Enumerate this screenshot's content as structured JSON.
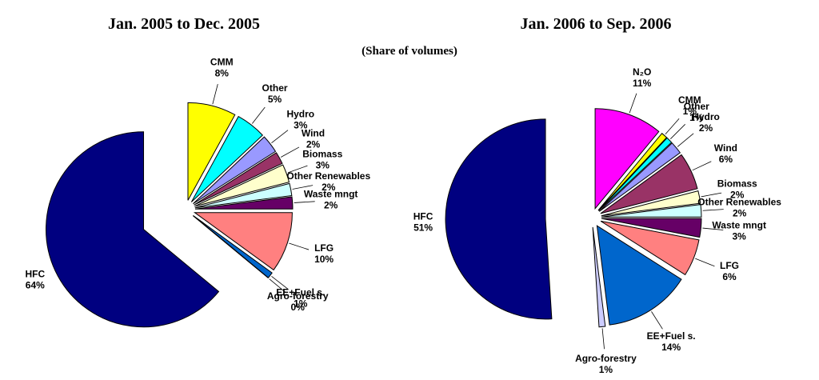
{
  "subtitle": "(Share of volumes)",
  "chart_data": [
    {
      "type": "pie",
      "title": "Jan. 2005 to Dec. 2005",
      "categories": [
        "CMM",
        "Other",
        "Hydro",
        "Wind",
        "Biomass",
        "Other Renewables",
        "Waste mngt",
        "LFG",
        "EE+Fuel s.",
        "Agro-forestry",
        "HFC"
      ],
      "values": [
        8,
        5,
        3,
        2,
        3,
        2,
        2,
        10,
        1,
        0,
        64
      ],
      "value_labels": [
        "8%",
        "5%",
        "3%",
        "2%",
        "3%",
        "2%",
        "2%",
        "10%",
        "1%",
        "0%",
        "64%"
      ],
      "colors": [
        "#ffff00",
        "#00ffff",
        "#9999ff",
        "#993366",
        "#ffffcc",
        "#ccffff",
        "#660066",
        "#ff8080",
        "#0066cc",
        "#ccccff",
        "#000080"
      ]
    },
    {
      "type": "pie",
      "title": "Jan. 2006 to Sep. 2006",
      "categories": [
        "N₂O",
        "CMM",
        "Other",
        "Hydro",
        "Wind",
        "Biomass",
        "Other Renewables",
        "Waste mngt",
        "LFG",
        "EE+Fuel s.",
        "Agro-forestry",
        "HFC"
      ],
      "values": [
        11,
        1,
        1,
        2,
        6,
        2,
        2,
        3,
        6,
        14,
        1,
        51
      ],
      "value_labels": [
        "11%",
        "1%",
        "1%",
        "2%",
        "6%",
        "2%",
        "2%",
        "3%",
        "6%",
        "14%",
        "1%",
        "51%"
      ],
      "colors": [
        "#ff00ff",
        "#ffff00",
        "#00ffff",
        "#9999ff",
        "#993366",
        "#ffffcc",
        "#ccffff",
        "#660066",
        "#ff8080",
        "#0066cc",
        "#ccccff",
        "#000080"
      ]
    }
  ]
}
